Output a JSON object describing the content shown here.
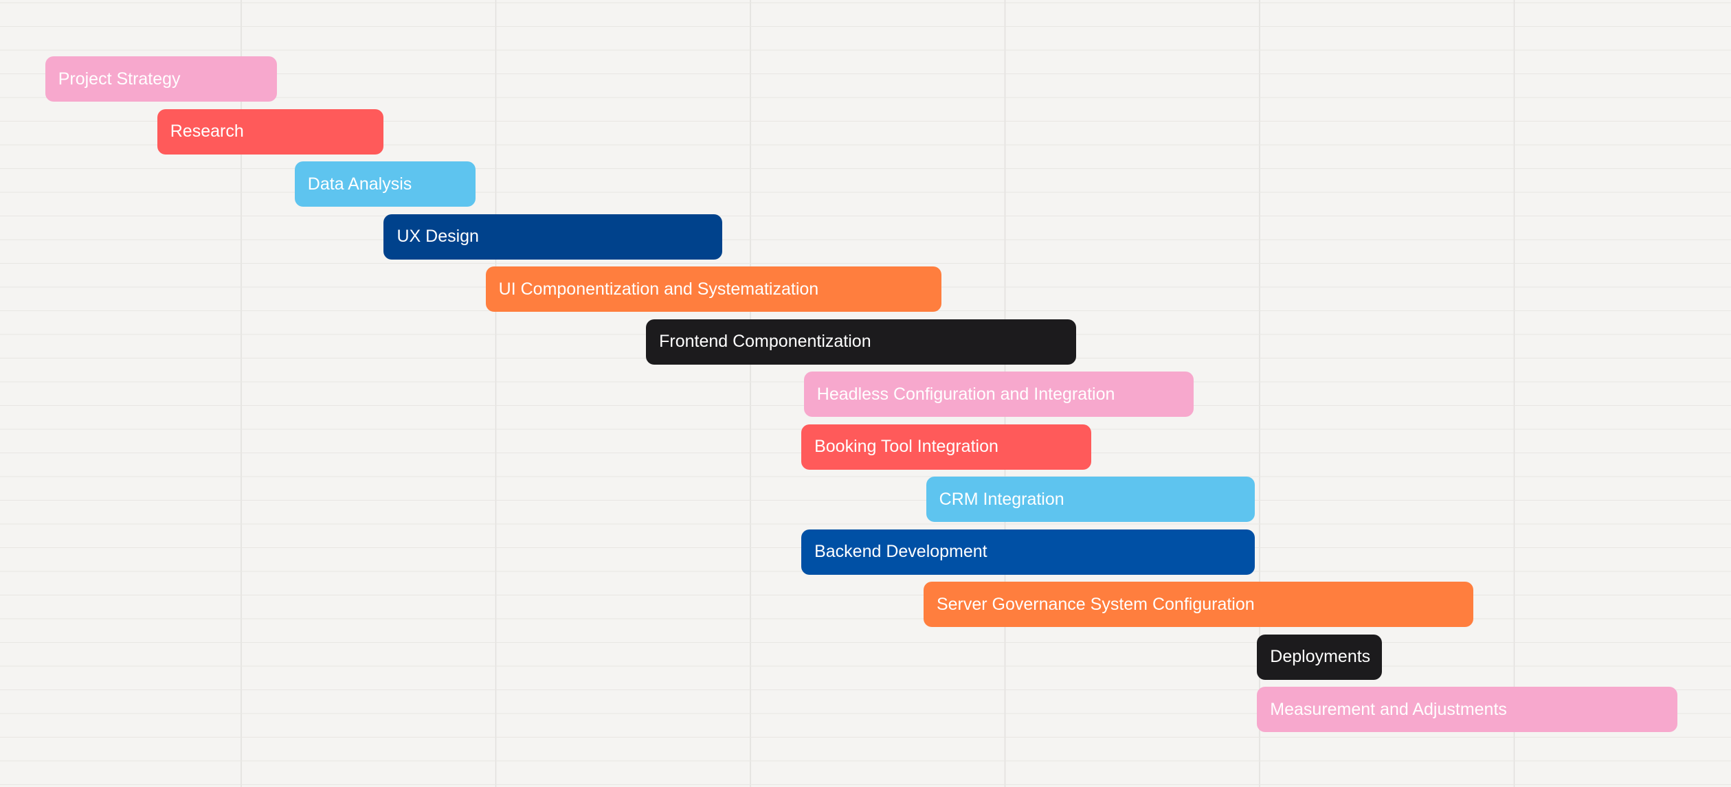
{
  "chart_data": {
    "type": "gantt",
    "title": "",
    "xlabel": "",
    "ylabel": "",
    "grid": true,
    "xlim": [
      0,
      6.8
    ],
    "tasks": [
      {
        "name": "Project Strategy",
        "start": -0.77,
        "end": 0.14,
        "color": "#f7a8cd"
      },
      {
        "name": "Research",
        "start": -0.33,
        "end": 0.56,
        "color": "#ff5a5a"
      },
      {
        "name": "Data Analysis",
        "start": 0.21,
        "end": 0.92,
        "color": "#5ec4ef"
      },
      {
        "name": "UX Design",
        "start": 0.56,
        "end": 1.89,
        "color": "#00428c"
      },
      {
        "name": "UI Componentization and Systematization",
        "start": 0.96,
        "end": 2.75,
        "color": "#ff7e3e"
      },
      {
        "name": "Frontend Componentization",
        "start": 1.59,
        "end": 3.28,
        "color": "#1c1b1d"
      },
      {
        "name": "Headless Configuration and Integration",
        "start": 2.21,
        "end": 3.74,
        "color": "#f7a8cd"
      },
      {
        "name": "Booking Tool Integration",
        "start": 2.2,
        "end": 3.34,
        "color": "#ff5a5a"
      },
      {
        "name": "CRM Integration",
        "start": 2.69,
        "end": 3.98,
        "color": "#5ec4ef"
      },
      {
        "name": "Backend Development",
        "start": 2.2,
        "end": 3.98,
        "color": "#0050a5"
      },
      {
        "name": "Server Governance System Configuration",
        "start": 2.68,
        "end": 4.84,
        "color": "#ff7e3e"
      },
      {
        "name": "Deployments",
        "start": 3.99,
        "end": 4.48,
        "color": "#1c1b1d"
      },
      {
        "name": "Measurement and Adjustments",
        "start": 3.99,
        "end": 5.64,
        "color": "#f7a8cd"
      }
    ]
  }
}
